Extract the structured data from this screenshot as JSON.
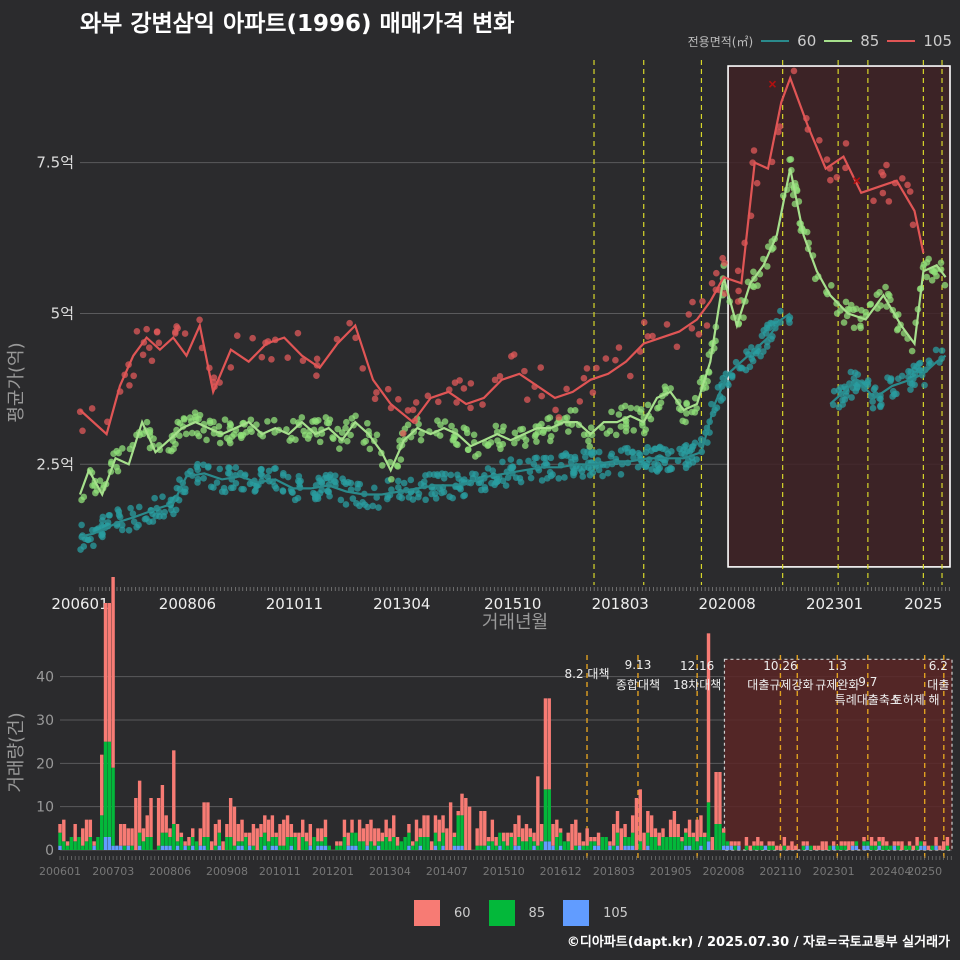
{
  "title": "와부 강변삼익 아파트(1996) 매매가격 변화",
  "footer": "©디아파트(dapt.kr) / 2025.07.30 / 자료=국토교통부 실거래가",
  "legend_top": {
    "title": "전용면적(㎡)",
    "items": [
      "60",
      "85",
      "105"
    ]
  },
  "legend_bottom": {
    "items": [
      "60",
      "85",
      "105"
    ]
  },
  "colors": {
    "s60_line": "#2a8a8c",
    "s85_line": "#a6e08c",
    "s105_line": "#e05555",
    "s60_pt": "#2a9ea0",
    "s85_pt": "#90e07a",
    "s105_pt": "#e05a5a",
    "bar60": "#f77b74",
    "bar85": "#03b83a",
    "bar105": "#619cff",
    "vline": "#d7d72a",
    "vline_bottom": "#e0a020",
    "highlight": "#3f2226"
  },
  "chart_data": [
    {
      "type": "line",
      "title": "",
      "xlabel": "거래년월",
      "ylabel": "평균가(억)",
      "ylim": [
        0.5,
        9.2
      ],
      "yticks": [
        2.5,
        5,
        7.5
      ],
      "ytick_labels": [
        "2.5억",
        "5억",
        "7.5억"
      ],
      "xticks": [
        2006.0,
        2008.42,
        2010.83,
        2013.25,
        2015.75,
        2018.17,
        2020.58,
        2023.0,
        2025.0
      ],
      "xtick_labels": [
        "200601",
        "200806",
        "201011",
        "201304",
        "201510",
        "201803",
        "202008",
        "202301",
        "2025"
      ],
      "vlines": [
        2017.58,
        2018.7,
        2020.0,
        2021.83,
        2023.08,
        2023.75,
        2025.0,
        2025.42
      ],
      "highlight": {
        "x": [
          2020.6,
          2025.6
        ],
        "y": [
          0.8,
          9.1
        ]
      },
      "series": [
        {
          "name": "60",
          "values": [
            [
              2006.0,
              1.3
            ],
            [
              2006.3,
              1.35
            ],
            [
              2006.6,
              1.45
            ],
            [
              2006.9,
              1.55
            ],
            [
              2007.2,
              1.62
            ],
            [
              2007.5,
              1.7
            ],
            [
              2007.8,
              1.78
            ],
            [
              2008.1,
              1.85
            ],
            [
              2008.4,
              2.3
            ],
            [
              2008.8,
              2.35
            ],
            [
              2009.2,
              2.25
            ],
            [
              2009.6,
              2.3
            ],
            [
              2010.0,
              2.2
            ],
            [
              2010.4,
              2.25
            ],
            [
              2010.8,
              2.1
            ],
            [
              2011.2,
              2.1
            ],
            [
              2011.6,
              2.15
            ],
            [
              2012.0,
              2.05
            ],
            [
              2012.4,
              2.0
            ],
            [
              2012.8,
              2.0
            ],
            [
              2013.2,
              2.05
            ],
            [
              2013.6,
              2.1
            ],
            [
              2014.0,
              2.15
            ],
            [
              2014.4,
              2.15
            ],
            [
              2014.8,
              2.2
            ],
            [
              2015.2,
              2.3
            ],
            [
              2015.6,
              2.35
            ],
            [
              2016.0,
              2.4
            ],
            [
              2016.4,
              2.45
            ],
            [
              2016.8,
              2.45
            ],
            [
              2017.2,
              2.5
            ],
            [
              2017.6,
              2.5
            ],
            [
              2018.0,
              2.55
            ],
            [
              2018.4,
              2.55
            ],
            [
              2018.8,
              2.6
            ],
            [
              2019.2,
              2.6
            ],
            [
              2019.6,
              2.6
            ],
            [
              2020.0,
              2.7
            ],
            [
              2020.3,
              3.5
            ],
            [
              2020.6,
              4.0
            ],
            [
              2020.9,
              4.2
            ],
            [
              2021.2,
              4.4
            ],
            [
              2021.5,
              4.6
            ],
            [
              2021.8,
              4.9
            ],
            [
              2022.0,
              5.0
            ],
            [
              2022.9,
              3.5
            ],
            [
              2023.2,
              3.7
            ],
            [
              2023.5,
              3.9
            ],
            [
              2023.9,
              3.6
            ],
            [
              2024.3,
              3.8
            ],
            [
              2024.7,
              3.9
            ],
            [
              2025.0,
              4.0
            ],
            [
              2025.3,
              4.2
            ],
            [
              2025.5,
              4.3
            ]
          ]
        },
        {
          "name": "85",
          "values": [
            [
              2006.0,
              2.0
            ],
            [
              2006.2,
              2.4
            ],
            [
              2006.5,
              2.0
            ],
            [
              2006.8,
              2.6
            ],
            [
              2007.1,
              2.5
            ],
            [
              2007.4,
              3.2
            ],
            [
              2007.7,
              2.7
            ],
            [
              2008.0,
              2.9
            ],
            [
              2008.3,
              3.1
            ],
            [
              2008.6,
              3.2
            ],
            [
              2008.9,
              3.1
            ],
            [
              2009.2,
              3.0
            ],
            [
              2009.5,
              3.1
            ],
            [
              2009.8,
              3.2
            ],
            [
              2010.1,
              3.0
            ],
            [
              2010.4,
              3.1
            ],
            [
              2010.7,
              3.0
            ],
            [
              2011.0,
              3.2
            ],
            [
              2011.3,
              3.0
            ],
            [
              2011.6,
              3.1
            ],
            [
              2011.9,
              2.9
            ],
            [
              2012.2,
              3.2
            ],
            [
              2012.5,
              3.0
            ],
            [
              2012.8,
              2.7
            ],
            [
              2013.0,
              2.4
            ],
            [
              2013.3,
              2.9
            ],
            [
              2013.6,
              3.1
            ],
            [
              2013.9,
              3.0
            ],
            [
              2014.2,
              3.1
            ],
            [
              2014.5,
              3.0
            ],
            [
              2014.8,
              2.8
            ],
            [
              2015.1,
              2.9
            ],
            [
              2015.4,
              3.0
            ],
            [
              2015.7,
              2.9
            ],
            [
              2016.0,
              3.0
            ],
            [
              2016.3,
              3.1
            ],
            [
              2016.6,
              3.1
            ],
            [
              2016.9,
              3.2
            ],
            [
              2017.2,
              3.2
            ],
            [
              2017.5,
              3.0
            ],
            [
              2017.8,
              3.2
            ],
            [
              2018.1,
              3.2
            ],
            [
              2018.4,
              3.3
            ],
            [
              2018.7,
              3.2
            ],
            [
              2019.0,
              3.6
            ],
            [
              2019.3,
              3.7
            ],
            [
              2019.6,
              3.4
            ],
            [
              2019.9,
              3.5
            ],
            [
              2020.2,
              4.2
            ],
            [
              2020.5,
              5.6
            ],
            [
              2020.8,
              4.8
            ],
            [
              2021.1,
              5.5
            ],
            [
              2021.4,
              5.8
            ],
            [
              2021.7,
              6.3
            ],
            [
              2022.0,
              7.4
            ],
            [
              2022.3,
              6.3
            ],
            [
              2022.6,
              5.7
            ],
            [
              2022.9,
              5.3
            ],
            [
              2023.3,
              5.0
            ],
            [
              2023.7,
              4.9
            ],
            [
              2024.1,
              5.3
            ],
            [
              2024.5,
              4.8
            ],
            [
              2024.8,
              4.5
            ],
            [
              2025.0,
              5.7
            ],
            [
              2025.3,
              5.8
            ],
            [
              2025.5,
              5.6
            ]
          ]
        },
        {
          "name": "105",
          "values": [
            [
              2006.0,
              3.4
            ],
            [
              2006.6,
              3.0
            ],
            [
              2006.9,
              3.8
            ],
            [
              2007.2,
              4.3
            ],
            [
              2007.5,
              4.6
            ],
            [
              2007.8,
              4.4
            ],
            [
              2008.1,
              4.6
            ],
            [
              2008.4,
              4.3
            ],
            [
              2008.7,
              4.8
            ],
            [
              2009.0,
              3.7
            ],
            [
              2009.4,
              4.4
            ],
            [
              2009.8,
              4.2
            ],
            [
              2010.2,
              4.5
            ],
            [
              2010.6,
              4.6
            ],
            [
              2011.0,
              4.3
            ],
            [
              2011.4,
              4.1
            ],
            [
              2011.8,
              4.5
            ],
            [
              2012.2,
              4.8
            ],
            [
              2012.6,
              3.9
            ],
            [
              2013.0,
              3.5
            ],
            [
              2013.5,
              3.2
            ],
            [
              2013.9,
              3.6
            ],
            [
              2014.3,
              3.7
            ],
            [
              2014.7,
              3.5
            ],
            [
              2015.1,
              3.6
            ],
            [
              2015.5,
              3.9
            ],
            [
              2015.9,
              4.0
            ],
            [
              2016.3,
              3.8
            ],
            [
              2016.7,
              3.6
            ],
            [
              2017.1,
              3.7
            ],
            [
              2017.5,
              3.9
            ],
            [
              2017.9,
              4.0
            ],
            [
              2018.3,
              4.2
            ],
            [
              2018.7,
              4.5
            ],
            [
              2019.1,
              4.6
            ],
            [
              2019.5,
              4.7
            ],
            [
              2019.9,
              4.9
            ],
            [
              2020.2,
              5.2
            ],
            [
              2020.5,
              5.6
            ],
            [
              2020.9,
              5.5
            ],
            [
              2021.2,
              7.5
            ],
            [
              2021.5,
              7.4
            ],
            [
              2021.8,
              8.5
            ],
            [
              2022.0,
              8.9
            ],
            [
              2022.4,
              8.1
            ],
            [
              2022.8,
              7.4
            ],
            [
              2023.2,
              7.6
            ],
            [
              2023.6,
              7.0
            ],
            [
              2024.0,
              7.1
            ],
            [
              2024.4,
              7.2
            ],
            [
              2024.8,
              6.7
            ],
            [
              2025.0,
              6.0
            ]
          ]
        }
      ]
    },
    {
      "type": "bar",
      "title": "",
      "xlabel": "",
      "ylabel": "거래량(건)",
      "ylim": [
        0,
        45
      ],
      "yticks": [
        0,
        10,
        20,
        30,
        40
      ],
      "xticks": [
        2006.0,
        2007.17,
        2008.42,
        2009.67,
        2010.83,
        2012.0,
        2013.25,
        2014.5,
        2015.75,
        2017.0,
        2018.17,
        2019.42,
        2020.58,
        2021.83,
        2023.0,
        2024.25,
        2025.0
      ],
      "xtick_labels": [
        "200601",
        "200703",
        "200806",
        "200908",
        "201011",
        "201201",
        "201304",
        "201407",
        "201510",
        "201612",
        "201803",
        "201905",
        "202008",
        "202110",
        "202301",
        "202404",
        "20250"
      ],
      "vlines": [
        2017.58,
        2018.7,
        2020.0,
        2021.83,
        2022.2,
        2023.08,
        2023.75,
        2025.0,
        2025.42
      ],
      "highlight": {
        "x": [
          2020.6,
          2025.6
        ],
        "y": [
          0,
          44
        ]
      },
      "annotations": [
        {
          "x": 2017.58,
          "lines": [
            "8.2 대책"
          ]
        },
        {
          "x": 2018.7,
          "lines": [
            "9.13",
            "종합대책"
          ]
        },
        {
          "x": 2020.0,
          "lines": [
            "12.16",
            "18차대책"
          ]
        },
        {
          "x": 2021.83,
          "lines": [
            "10.26",
            "대출규제강화"
          ]
        },
        {
          "x": 2023.08,
          "lines": [
            "1.3",
            "규제완화"
          ]
        },
        {
          "x": 2023.75,
          "lines": [
            "9.7",
            "특례대출축소"
          ]
        },
        {
          "x": 2025.3,
          "lines": [
            "6.2",
            "대출"
          ]
        },
        {
          "x": 2024.8,
          "lines": [
            "토허제 해"
          ]
        }
      ],
      "series": [
        {
          "name": "60",
          "peaks": [
            [
              2006.35,
              4
            ],
            [
              2006.9,
              14
            ],
            [
              2007.05,
              32
            ],
            [
              2007.15,
              44
            ],
            [
              2007.7,
              12
            ],
            [
              2008.0,
              9
            ],
            [
              2008.2,
              11
            ],
            [
              2008.5,
              17
            ],
            [
              2009.2,
              8
            ],
            [
              2009.8,
              9
            ],
            [
              2010.3,
              5
            ],
            [
              2010.9,
              6
            ],
            [
              2011.5,
              5
            ],
            [
              2012.8,
              5
            ],
            [
              2014.6,
              11
            ],
            [
              2014.9,
              12
            ],
            [
              2015.0,
              10
            ],
            [
              2015.3,
              8
            ],
            [
              2016.5,
              16
            ],
            [
              2016.7,
              21
            ],
            [
              2017.3,
              6
            ],
            [
              2018.7,
              12
            ],
            [
              2019.5,
              6
            ],
            [
              2020.0,
              5
            ],
            [
              2020.25,
              39
            ],
            [
              2020.45,
              12
            ]
          ]
        },
        {
          "name": "85",
          "peaks": [
            [
              2006.9,
              8
            ],
            [
              2007.05,
              22
            ],
            [
              2007.15,
              18
            ],
            [
              2008.5,
              6
            ],
            [
              2014.8,
              7
            ],
            [
              2016.7,
              12
            ],
            [
              2020.25,
              9
            ],
            [
              2020.45,
              6
            ]
          ]
        },
        {
          "name": "105",
          "peaks": [
            [
              2007.05,
              3
            ],
            [
              2016.7,
              2
            ],
            [
              2020.25,
              2
            ]
          ]
        }
      ]
    }
  ]
}
